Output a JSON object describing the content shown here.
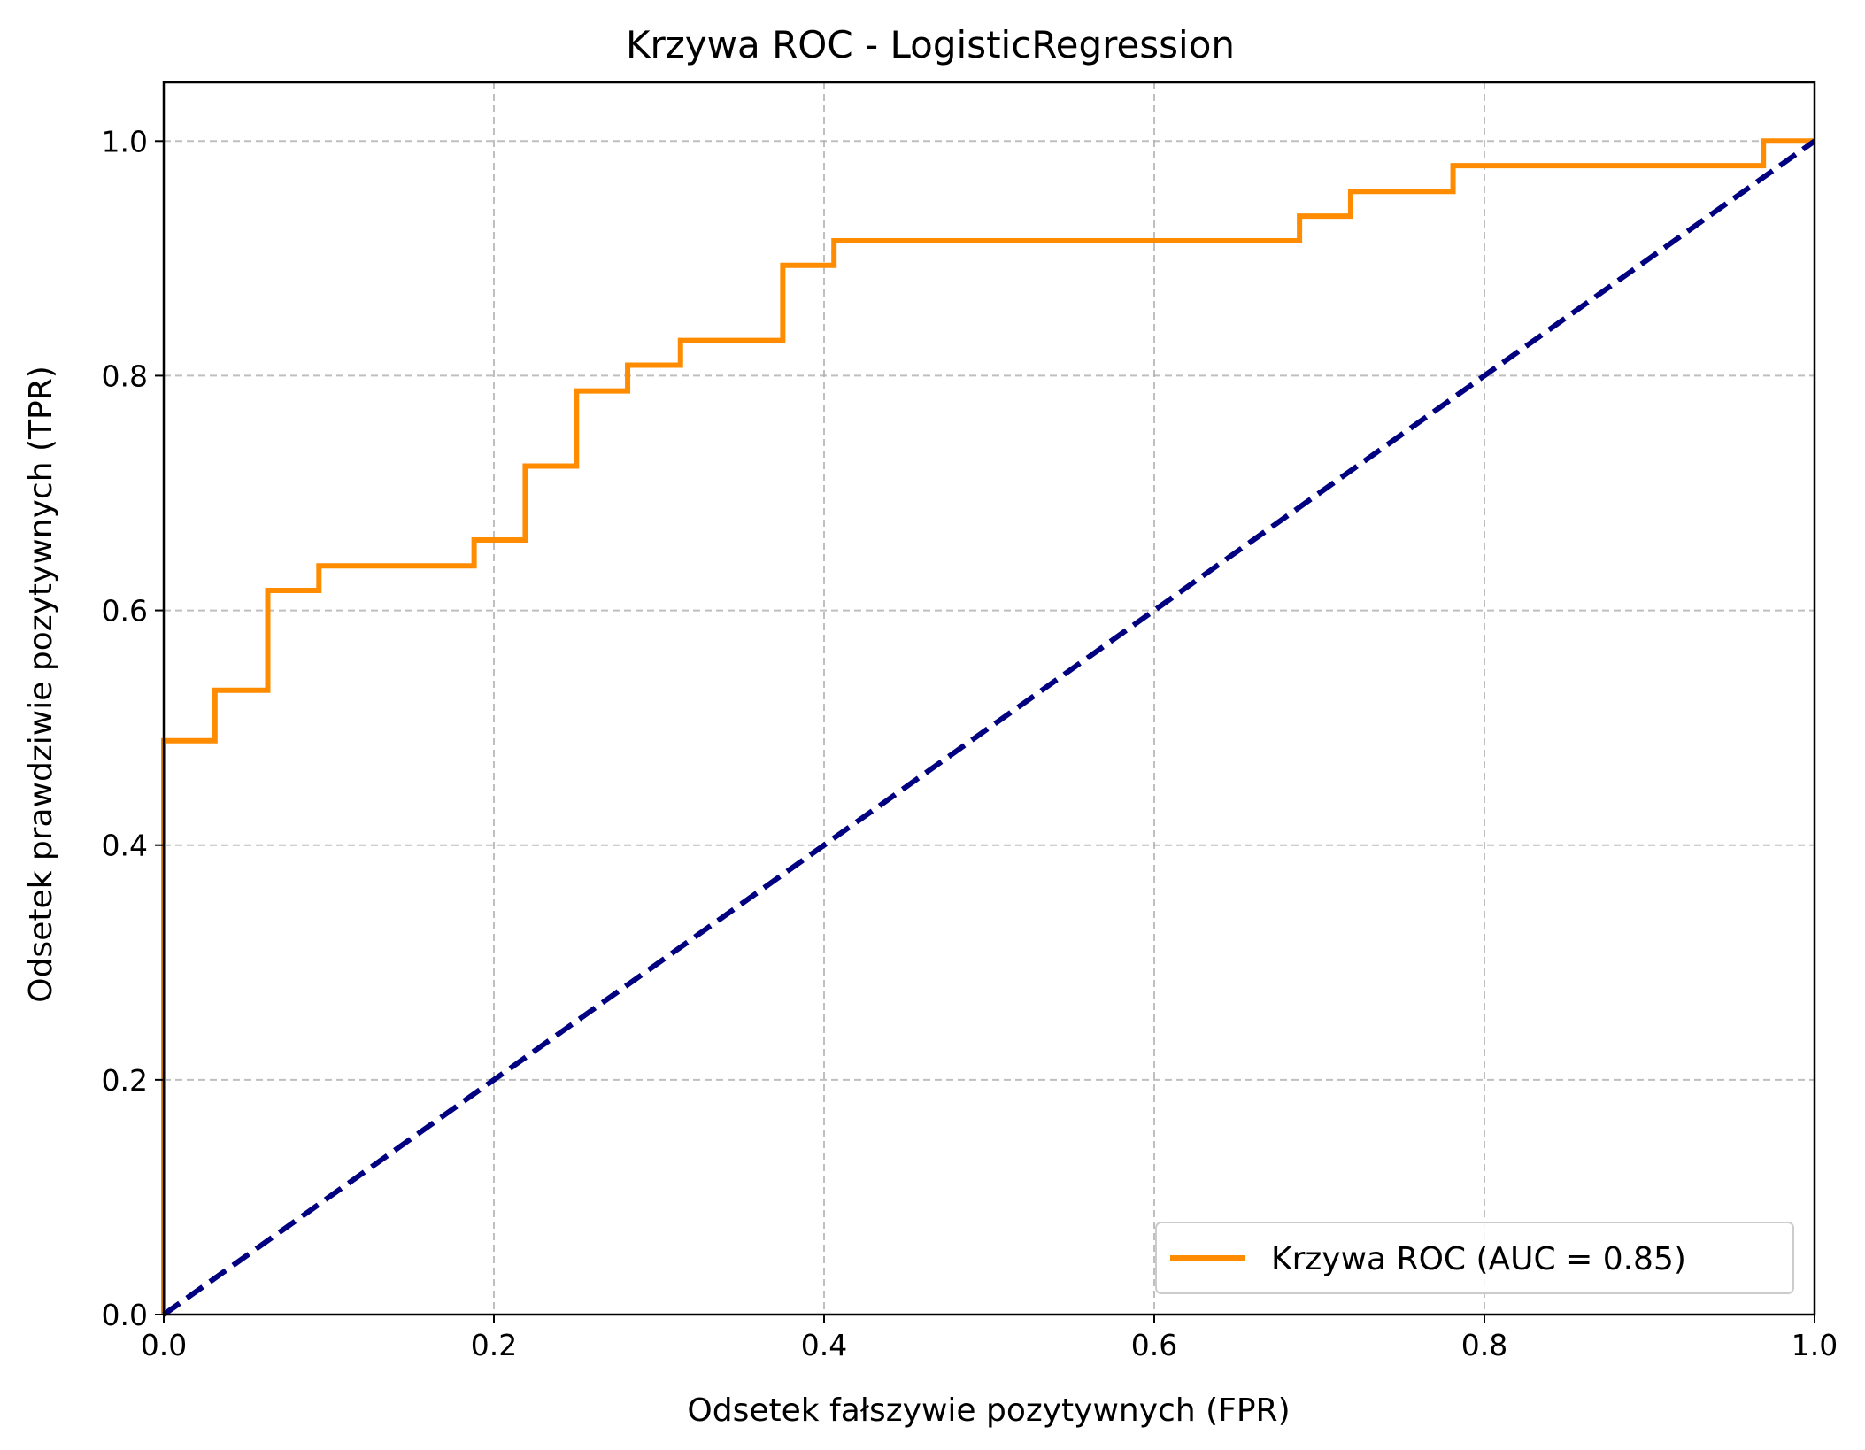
{
  "chart_data": {
    "type": "line",
    "title": "Krzywa ROC - LogisticRegression",
    "xlabel": "Odsetek fałszywie pozytywnych (FPR)",
    "ylabel": "Odsetek prawdziwie pozytywnych (TPR)",
    "xlim": [
      0.0,
      1.0
    ],
    "ylim": [
      0.0,
      1.05
    ],
    "xticks": [
      0.0,
      0.2,
      0.4,
      0.6,
      0.8,
      1.0
    ],
    "yticks": [
      0.0,
      0.2,
      0.4,
      0.6,
      0.8,
      1.0
    ],
    "tick_format": "0.0",
    "grid": true,
    "grid_style": "dashed",
    "legend_position": "lower-right",
    "series": [
      {
        "name": "Krzywa ROC (AUC = 0.85)",
        "color": "#ff8c00",
        "line_style": "solid",
        "x": [
          0.0,
          0.0,
          0.031,
          0.031,
          0.063,
          0.063,
          0.094,
          0.094,
          0.188,
          0.188,
          0.219,
          0.219,
          0.25,
          0.25,
          0.281,
          0.281,
          0.313,
          0.313,
          0.375,
          0.375,
          0.406,
          0.406,
          0.688,
          0.688,
          0.719,
          0.719,
          0.781,
          0.781,
          0.969,
          0.969,
          1.0
        ],
        "y": [
          0.0,
          0.489,
          0.489,
          0.532,
          0.532,
          0.617,
          0.617,
          0.638,
          0.638,
          0.66,
          0.66,
          0.723,
          0.723,
          0.787,
          0.787,
          0.809,
          0.809,
          0.83,
          0.83,
          0.894,
          0.894,
          0.915,
          0.915,
          0.936,
          0.936,
          0.957,
          0.957,
          0.979,
          0.979,
          1.0,
          1.0
        ]
      },
      {
        "color": "#000080",
        "line_style": "dashed",
        "x": [
          0.0,
          1.0
        ],
        "y": [
          0.0,
          1.0
        ]
      }
    ]
  }
}
